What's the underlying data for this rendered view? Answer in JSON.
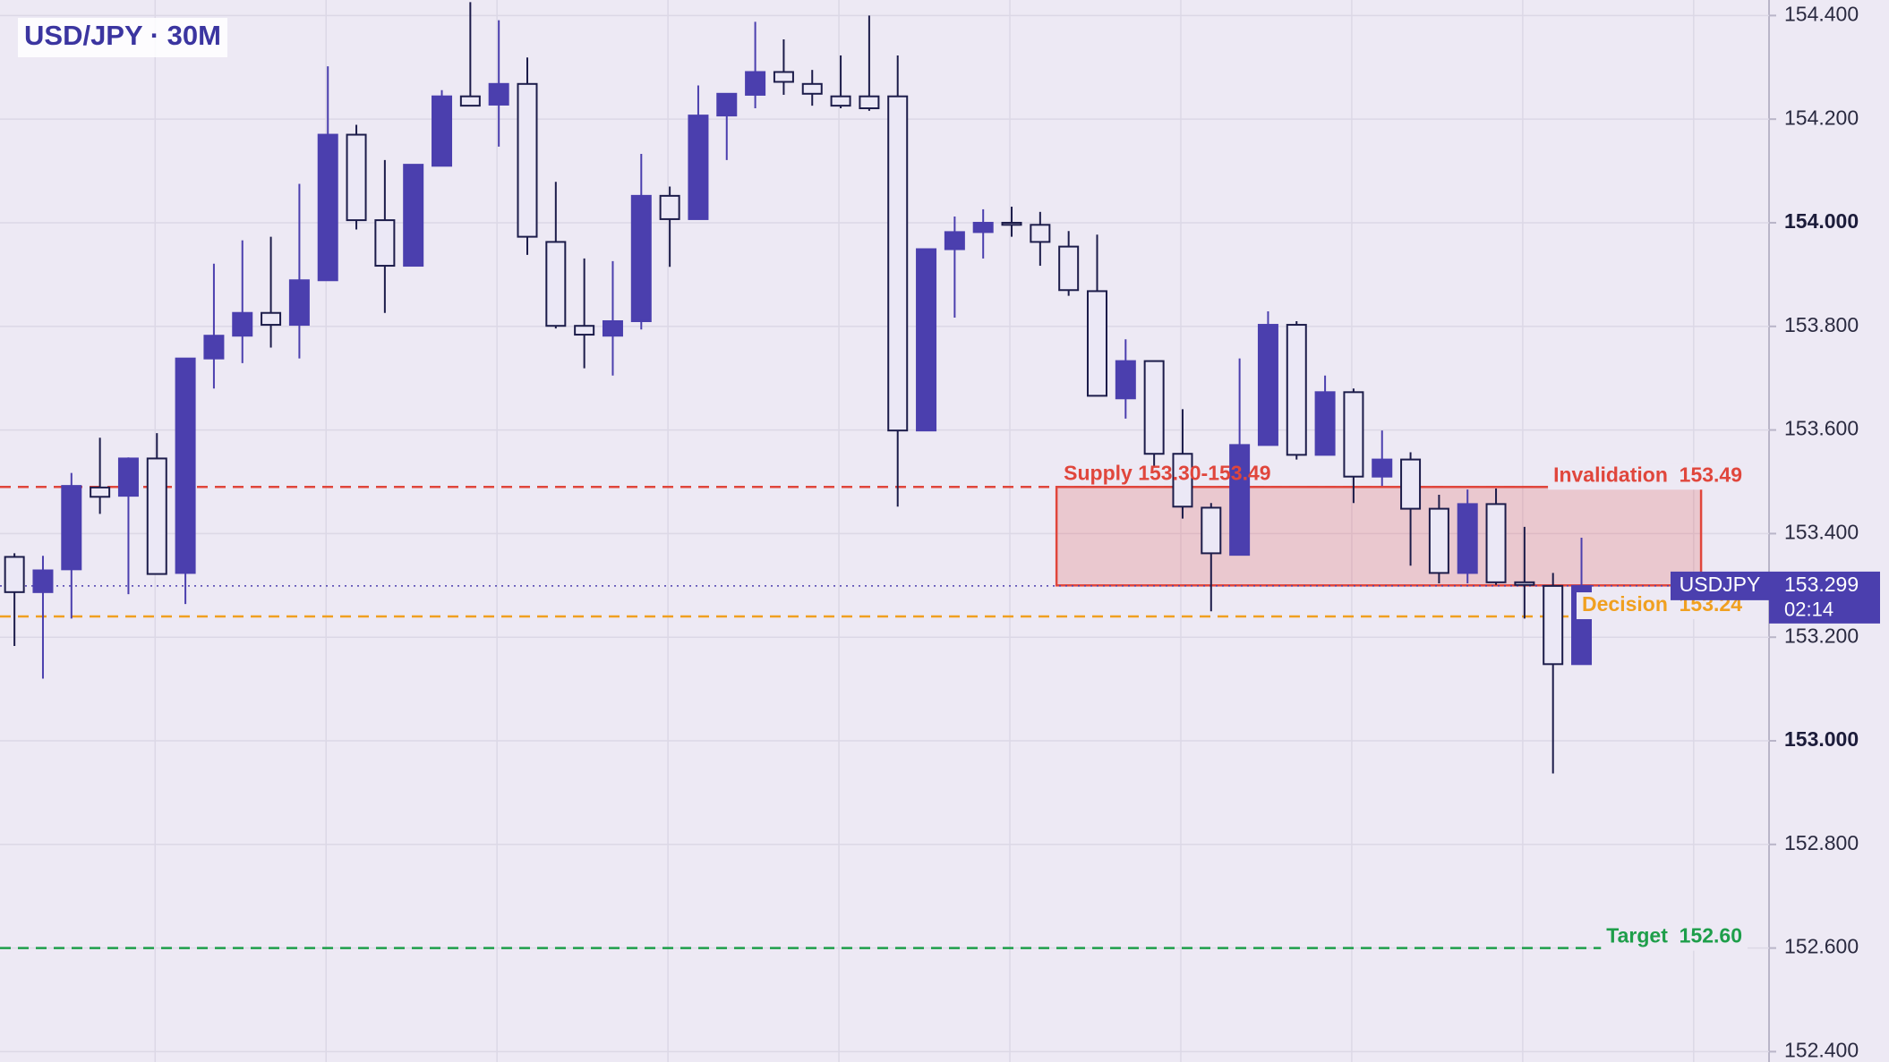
{
  "chart_data": {
    "type": "candlestick",
    "title": "USD/JPY · 30M",
    "ylim": [
      152.38,
      154.43
    ],
    "yticks": [
      {
        "value": 152.4,
        "label": "152.400"
      },
      {
        "value": 152.6,
        "label": "152.600"
      },
      {
        "value": 152.8,
        "label": "152.800"
      },
      {
        "value": 153,
        "label": "153.000"
      },
      {
        "value": 153.2,
        "label": "153.200"
      },
      {
        "value": 153.4,
        "label": "153.400"
      },
      {
        "value": 153.6,
        "label": "153.600"
      },
      {
        "value": 153.8,
        "label": "153.800"
      },
      {
        "value": 154,
        "label": "154.000"
      },
      {
        "value": 154.2,
        "label": "154.200"
      },
      {
        "value": 154.4,
        "label": "154.400"
      }
    ],
    "grid": true,
    "up_color": "#4b3fae",
    "down_color": "#ebe8f6",
    "open": [
      153.355,
      153.287,
      153.331,
      153.489,
      153.473,
      153.545,
      153.324,
      153.738,
      153.782,
      153.826,
      153.803,
      153.889,
      154.17,
      154.005,
      153.917,
      154.11,
      154.244,
      154.228,
      154.268,
      153.963,
      153.801,
      153.782,
      153.81,
      154.052,
      154.007,
      154.207,
      154.247,
      154.291,
      154.268,
      154.244,
      154.244,
      154.244,
      153.599,
      153.949,
      153.982,
      154.0,
      153.996,
      153.954,
      153.868,
      153.661,
      153.733,
      153.554,
      153.45,
      153.359,
      153.571,
      153.803,
      153.552,
      153.673,
      153.51,
      153.543,
      153.448,
      153.324,
      153.457,
      153.306,
      153.299,
      153.148
    ],
    "high": [
      153.362,
      153.357,
      153.517,
      153.585,
      153.547,
      153.594,
      153.738,
      153.921,
      153.966,
      153.973,
      154.075,
      154.302,
      154.189,
      154.121,
      154.112,
      154.256,
      154.426,
      154.391,
      154.319,
      154.079,
      153.931,
      153.926,
      154.133,
      154.07,
      154.265,
      154.249,
      154.388,
      154.354,
      154.295,
      154.323,
      154.4,
      154.323,
      153.949,
      154.012,
      154.026,
      154.031,
      154.021,
      153.984,
      153.977,
      153.775,
      153.733,
      153.64,
      153.459,
      153.738,
      153.829,
      153.81,
      153.705,
      153.68,
      153.599,
      153.557,
      153.475,
      153.485,
      153.487,
      153.413,
      153.324,
      153.392
    ],
    "low": [
      153.183,
      153.12,
      153.236,
      153.438,
      153.283,
      153.322,
      153.264,
      153.68,
      153.729,
      153.759,
      153.738,
      153.889,
      153.987,
      153.826,
      153.917,
      154.11,
      154.226,
      154.147,
      153.938,
      153.796,
      153.719,
      153.705,
      153.794,
      153.915,
      154.007,
      154.121,
      154.221,
      154.247,
      154.226,
      154.221,
      154.216,
      153.452,
      153.599,
      153.817,
      153.931,
      153.973,
      153.917,
      153.859,
      153.666,
      153.622,
      153.529,
      153.429,
      153.25,
      153.359,
      153.571,
      153.543,
      153.552,
      153.459,
      153.492,
      153.338,
      153.304,
      153.304,
      153.301,
      153.236,
      152.937,
      153.148
    ],
    "close": [
      153.287,
      153.329,
      153.492,
      153.471,
      153.545,
      153.322,
      153.738,
      153.782,
      153.826,
      153.803,
      153.889,
      154.17,
      154.005,
      153.917,
      154.112,
      154.244,
      154.226,
      154.268,
      153.973,
      153.801,
      153.784,
      153.81,
      154.052,
      154.007,
      154.207,
      154.249,
      154.291,
      154.272,
      154.249,
      154.226,
      154.221,
      153.599,
      153.949,
      153.982,
      154.0,
      153.996,
      153.963,
      153.87,
      153.666,
      153.733,
      153.554,
      153.452,
      153.362,
      153.571,
      153.803,
      153.552,
      153.673,
      153.51,
      153.543,
      153.448,
      153.324,
      153.457,
      153.306,
      153.301,
      153.148,
      153.299
    ],
    "zone": {
      "label": "Supply 153.30-153.49",
      "low": 153.3,
      "high": 153.49,
      "color": "#e0463c"
    },
    "levels": [
      {
        "label": "Invalidation  153.49",
        "value": 153.49,
        "color": "#e0463c"
      },
      {
        "label": "Decision  153.24",
        "value": 153.24,
        "color": "#f0a020"
      },
      {
        "label": "Target  152.60",
        "value": 152.6,
        "color": "#1e9e4a"
      }
    ],
    "current": {
      "symbol": "USDJPY",
      "value": 153.299,
      "countdown": "02:14",
      "color": "#4b3fae"
    }
  }
}
